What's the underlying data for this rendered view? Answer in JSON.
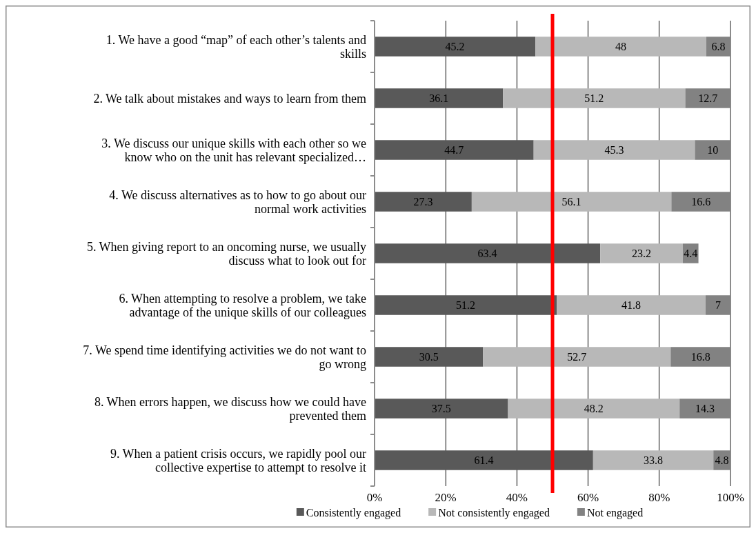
{
  "chart_data": {
    "type": "bar",
    "orientation": "horizontal",
    "stacked": true,
    "categories": [
      "1. We have a good “map” of each other’s talents and skills",
      "2. We talk about mistakes and ways to learn from them",
      "3. We discuss our unique skills with each other so we know who on the unit has relevant specialized…",
      "4. We discuss alternatives as to how to go about our normal work activities",
      "5.  When giving report to an oncoming nurse, we usually discuss what to look out for",
      "6. When attempting to resolve a problem, we take advantage of the unique skills of our colleagues",
      "7.  We spend time identifying activities we do not want to go wrong",
      "8. When errors happen, we discuss how we could have prevented them",
      "9. When a patient crisis occurs, we rapidly pool our collective expertise to    attempt to resolve it"
    ],
    "series": [
      {
        "name": "Consistently engaged",
        "color": "#595959",
        "values": [
          45.2,
          36.1,
          44.7,
          27.3,
          63.4,
          51.2,
          30.5,
          37.5,
          61.4
        ],
        "value_labels": [
          "45.2",
          "36.1",
          "44.7",
          "27.3",
          "63.4",
          "51.2",
          "30.5",
          "37.5",
          "61.4"
        ]
      },
      {
        "name": "Not consistently engaged",
        "color": "#b8b8b8",
        "values": [
          48,
          51.2,
          45.3,
          56.1,
          23.2,
          41.8,
          52.7,
          48.2,
          33.8
        ],
        "value_labels": [
          "48",
          "51.2",
          "45.3",
          "56.1",
          "23.2",
          "41.8",
          "52.7",
          "48.2",
          "33.8"
        ]
      },
      {
        "name": "Not engaged",
        "color": "#828282",
        "values": [
          6.8,
          12.7,
          10,
          16.6,
          4.4,
          7,
          16.8,
          14.3,
          4.8
        ],
        "value_labels": [
          "6.8",
          "12.7",
          "10",
          "16.6",
          "4.4",
          "7",
          "16.8",
          "14.3",
          "4.8"
        ]
      }
    ],
    "xlim": [
      0,
      100
    ],
    "xticks": [
      {
        "value": 0,
        "label": "0%"
      },
      {
        "value": 20,
        "label": "20%"
      },
      {
        "value": 40,
        "label": "40%"
      },
      {
        "value": 60,
        "label": "60%"
      },
      {
        "value": 80,
        "label": "80%"
      },
      {
        "value": 100,
        "label": "100%"
      }
    ],
    "grid": "x",
    "legend": "bottom",
    "ref_lines": [
      {
        "axis": "x",
        "value": 50,
        "color": "#ff0000"
      }
    ]
  }
}
